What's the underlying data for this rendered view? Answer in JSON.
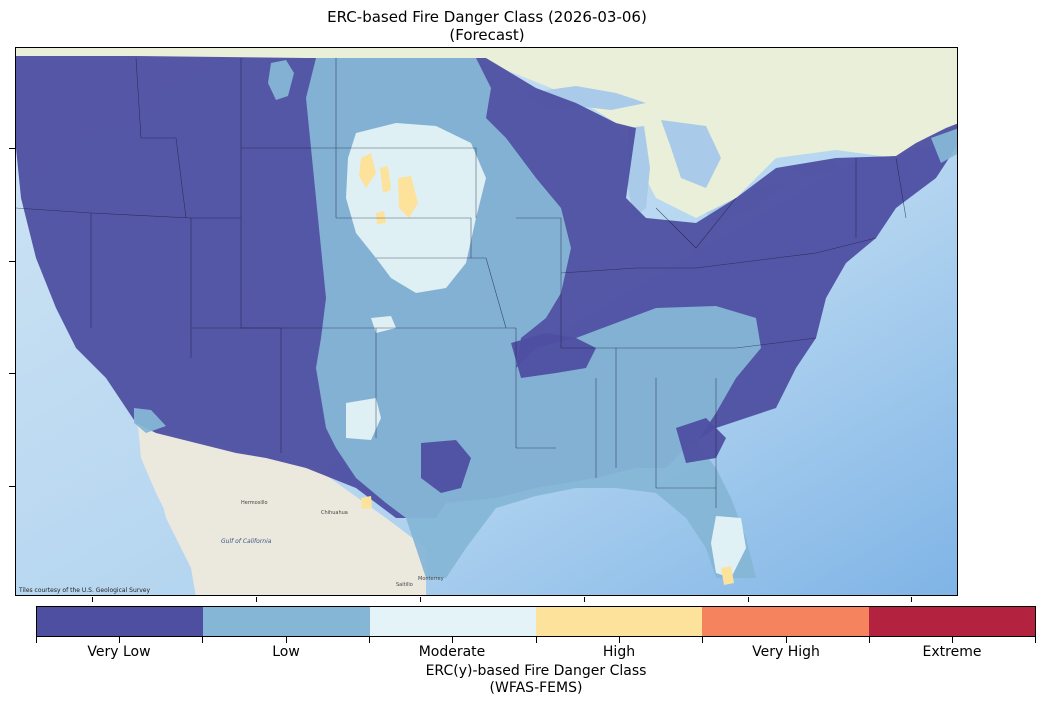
{
  "title": {
    "line1": "ERC-based Fire Danger Class (2026-03-06)",
    "line2": "(Forecast)"
  },
  "map": {
    "attribution": "Tiles courtesy of the U.S. Geological Survey",
    "basemap_colors": {
      "ocean": "#bcd9f0",
      "ocean_deep": "#8fc0e8",
      "land": "#ecebe2",
      "canada": "#e8eed8",
      "lakes": "#a9cbe9"
    },
    "labels": [
      "Gulf of California",
      "Hermosillo",
      "Chihuahua",
      "Monterrey",
      "Saltillo"
    ]
  },
  "legend": {
    "title_line1": "ERC(y)-based Fire Danger Class",
    "title_line2": "(WFAS-FEMS)",
    "classes": [
      {
        "label": "Very Low",
        "color": "#4e4fa1"
      },
      {
        "label": "Low",
        "color": "#86b6d6"
      },
      {
        "label": "Moderate",
        "color": "#e4f3f7"
      },
      {
        "label": "High",
        "color": "#fde29c"
      },
      {
        "label": "Very High",
        "color": "#f4835e"
      },
      {
        "label": "Extreme",
        "color": "#b3233f"
      }
    ]
  }
}
